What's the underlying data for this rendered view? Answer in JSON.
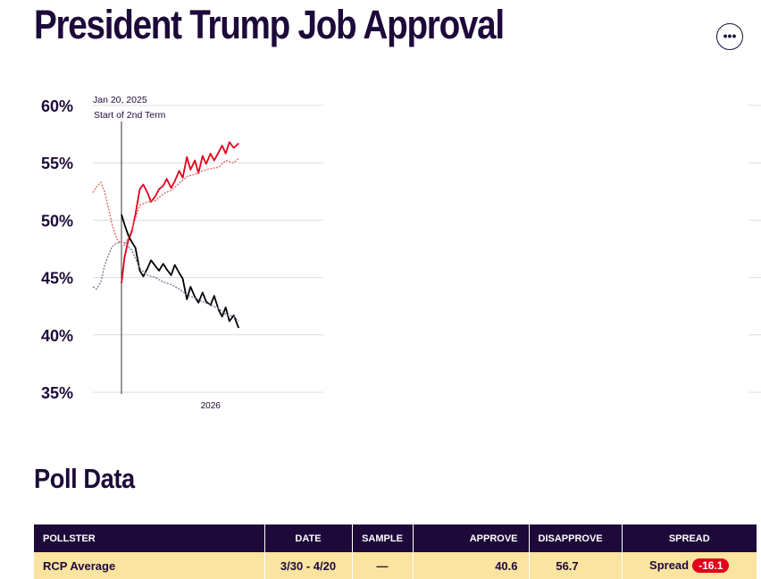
{
  "header": {
    "title": "President Trump Job Approval",
    "more_icon": "more-horizontal-icon"
  },
  "chart_data": {
    "type": "line",
    "title": "",
    "xlabel": "",
    "ylabel": "",
    "ylim": [
      35,
      60
    ],
    "yticks": [
      "60%",
      "55%",
      "50%",
      "45%",
      "40%",
      "35%"
    ],
    "xtick": {
      "x": "2026-01-01",
      "label": "2026"
    },
    "xlim": [
      "2024-10-01",
      "2027-03-15"
    ],
    "grid": true,
    "annotation": {
      "x": "2025-01-20",
      "line1": "Jan 20, 2025",
      "line2": "Start of 2nd Term"
    },
    "colors": {
      "disapprove": "#e4001b",
      "approve": "#000000",
      "prior_disapprove": "#e46a6a",
      "prior_approve": "#7c7a9a"
    },
    "series": [
      {
        "key": "disapprove",
        "style": "solid",
        "x": [
          "2025-01-20",
          "2025-02-01",
          "2025-02-15",
          "2025-03-01",
          "2025-03-15",
          "2025-04-01",
          "2025-04-15",
          "2025-05-01",
          "2025-05-15",
          "2025-06-01",
          "2025-06-15",
          "2025-07-01",
          "2025-07-15",
          "2025-08-01",
          "2025-08-15",
          "2025-09-01",
          "2025-09-15",
          "2025-10-01",
          "2025-10-15",
          "2025-11-01",
          "2025-11-15",
          "2025-12-01",
          "2025-12-15",
          "2026-01-01",
          "2026-01-15",
          "2026-02-01",
          "2026-02-15",
          "2026-03-01",
          "2026-03-15",
          "2026-04-01",
          "2026-04-20"
        ],
        "values": [
          44.5,
          46.8,
          48.2,
          49.0,
          50.5,
          52.7,
          53.1,
          52.4,
          51.6,
          52.1,
          52.7,
          53.0,
          53.6,
          52.8,
          53.4,
          54.3,
          53.7,
          55.5,
          54.4,
          55.2,
          54.1,
          55.6,
          54.9,
          55.8,
          55.2,
          55.9,
          56.5,
          55.8,
          56.8,
          56.3,
          56.7
        ]
      },
      {
        "key": "approve",
        "style": "solid",
        "x": [
          "2025-01-20",
          "2025-02-01",
          "2025-02-15",
          "2025-03-01",
          "2025-03-15",
          "2025-04-01",
          "2025-04-15",
          "2025-05-01",
          "2025-05-15",
          "2025-06-01",
          "2025-06-15",
          "2025-07-01",
          "2025-07-15",
          "2025-08-01",
          "2025-08-15",
          "2025-09-01",
          "2025-09-15",
          "2025-10-01",
          "2025-10-15",
          "2025-11-01",
          "2025-11-15",
          "2025-12-01",
          "2025-12-15",
          "2026-01-01",
          "2026-01-15",
          "2026-02-01",
          "2026-02-15",
          "2026-03-01",
          "2026-03-15",
          "2026-04-01",
          "2026-04-20"
        ],
        "values": [
          50.5,
          49.6,
          48.7,
          48.1,
          47.6,
          45.6,
          45.1,
          45.8,
          46.5,
          46.0,
          45.6,
          46.2,
          45.7,
          45.2,
          46.1,
          45.4,
          44.9,
          43.1,
          44.2,
          43.3,
          42.8,
          43.7,
          42.9,
          42.6,
          43.4,
          42.2,
          41.6,
          42.4,
          41.2,
          41.7,
          40.6
        ]
      },
      {
        "key": "prior_disapprove",
        "style": "dashed",
        "x": [
          "2024-10-01",
          "2024-10-15",
          "2024-11-01",
          "2024-11-15",
          "2024-12-01",
          "2024-12-15",
          "2025-01-01",
          "2025-01-20",
          "2025-02-01",
          "2025-03-01",
          "2025-04-01",
          "2025-05-01",
          "2025-06-01",
          "2025-07-01",
          "2025-08-01",
          "2025-09-01",
          "2025-10-01",
          "2025-11-01",
          "2025-12-01",
          "2026-01-01",
          "2026-02-01",
          "2026-03-01",
          "2026-04-01",
          "2026-04-20"
        ],
        "values": [
          52.4,
          52.9,
          53.3,
          52.5,
          51.0,
          49.6,
          48.4,
          47.9,
          47.8,
          49.2,
          51.3,
          51.6,
          51.7,
          52.3,
          52.6,
          53.2,
          53.8,
          54.0,
          54.3,
          54.5,
          54.6,
          55.2,
          55.0,
          55.4
        ]
      },
      {
        "key": "prior_approve",
        "style": "dashed",
        "x": [
          "2024-10-01",
          "2024-10-15",
          "2024-11-01",
          "2024-11-15",
          "2024-12-01",
          "2024-12-15",
          "2025-01-01",
          "2025-01-20",
          "2025-02-01",
          "2025-03-01",
          "2025-04-01",
          "2025-05-01",
          "2025-06-01",
          "2025-07-01",
          "2025-08-01",
          "2025-09-01",
          "2025-10-01",
          "2025-11-01",
          "2025-12-01",
          "2026-01-01",
          "2026-02-01",
          "2026-03-01",
          "2026-04-01",
          "2026-04-20"
        ],
        "values": [
          44.2,
          44.0,
          44.6,
          46.0,
          47.0,
          47.7,
          48.0,
          48.1,
          48.0,
          47.4,
          45.8,
          45.2,
          45.0,
          44.6,
          44.4,
          44.0,
          43.5,
          43.2,
          42.9,
          42.6,
          42.3,
          41.8,
          41.6,
          41.2
        ]
      }
    ]
  },
  "poll_section": {
    "title": "Poll Data",
    "columns": {
      "pollster": "POLLSTER",
      "date": "DATE",
      "sample": "SAMPLE",
      "approve": "APPROVE",
      "disapprove": "DISAPPROVE",
      "spread": "SPREAD"
    },
    "rows": [
      {
        "pollster": "RCP Average",
        "date": "3/30 - 4/20",
        "sample": "—",
        "approve": "40.6",
        "disapprove": "56.7",
        "spread_label": "Spread",
        "spread_value": "-16.1"
      }
    ]
  }
}
